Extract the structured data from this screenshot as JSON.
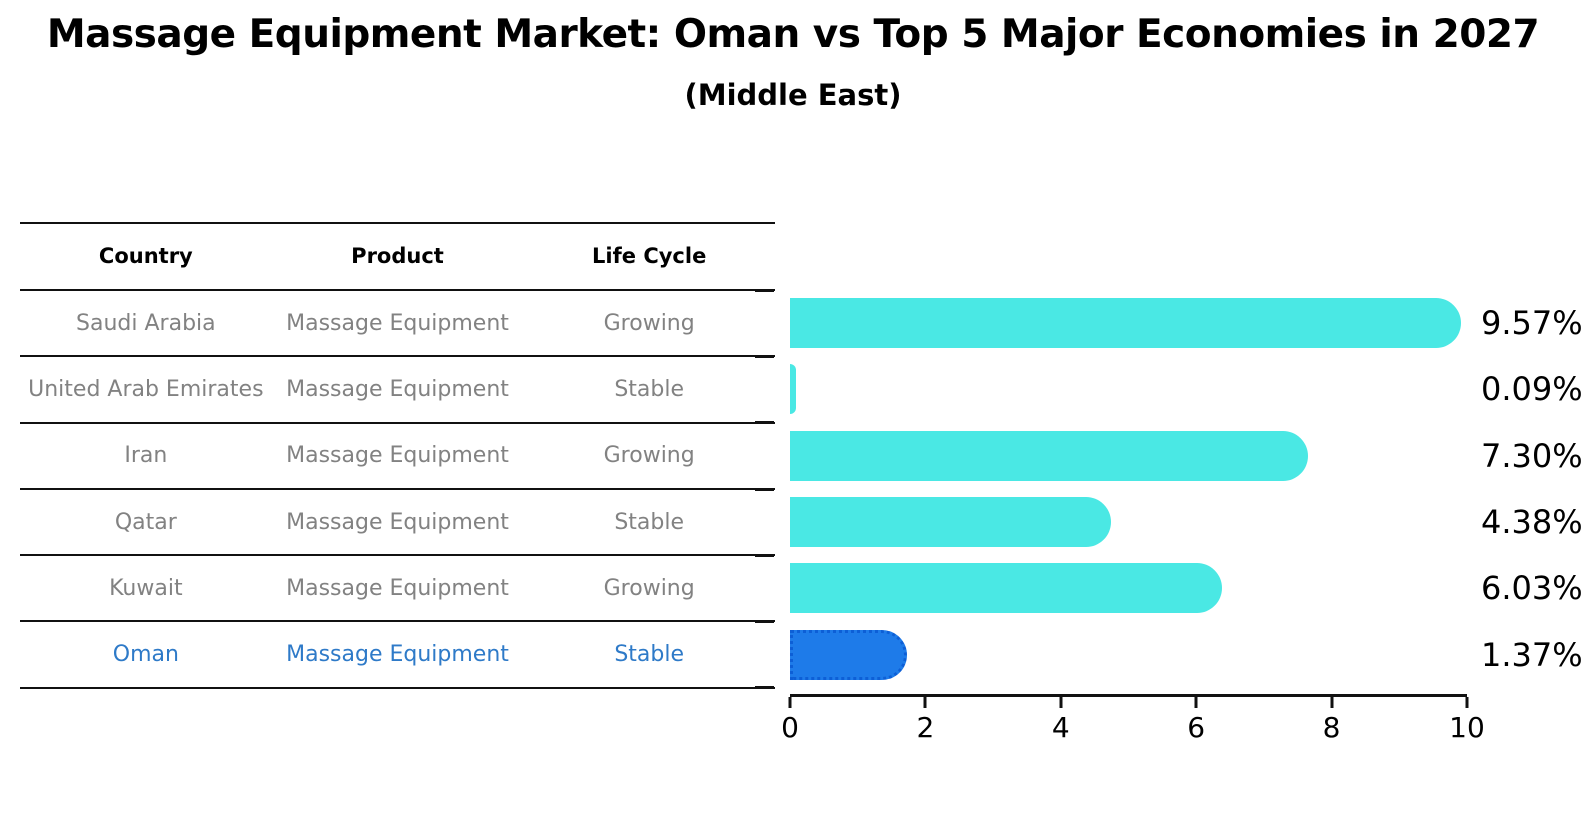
{
  "title": "Massage Equipment Market: Oman vs Top 5 Major Economies in 2027",
  "subtitle": "(Middle East)",
  "table": {
    "headers": [
      "Country",
      "Product",
      "Life Cycle"
    ],
    "rows": [
      {
        "country": "Saudi Arabia",
        "product": "Massage Equipment",
        "life_cycle": "Growing",
        "highlight": false
      },
      {
        "country": "United Arab Emirates",
        "product": "Massage Equipment",
        "life_cycle": "Stable",
        "highlight": false
      },
      {
        "country": "Iran",
        "product": "Massage Equipment",
        "life_cycle": "Growing",
        "highlight": false
      },
      {
        "country": "Qatar",
        "product": "Massage Equipment",
        "life_cycle": "Stable",
        "highlight": false
      },
      {
        "country": "Kuwait",
        "product": "Massage Equipment",
        "life_cycle": "Growing",
        "highlight": false
      },
      {
        "country": "Oman",
        "product": "Massage Equipment",
        "life_cycle": "Stable",
        "highlight": true
      }
    ]
  },
  "chart_data": {
    "type": "bar",
    "orientation": "horizontal",
    "title": "Massage Equipment Market: Oman vs Top 5 Major Economies in 2027 (Middle East)",
    "categories": [
      "Saudi Arabia",
      "United Arab Emirates",
      "Iran",
      "Qatar",
      "Kuwait",
      "Oman"
    ],
    "values": [
      9.57,
      0.09,
      7.3,
      4.38,
      6.03,
      1.37
    ],
    "labels": [
      "9.57%",
      "0.09%",
      "7.30%",
      "4.38%",
      "6.03%",
      "1.37%"
    ],
    "xlim": [
      0,
      10
    ],
    "xticks": [
      0,
      2,
      4,
      6,
      8,
      10
    ],
    "grid": false,
    "legend": false,
    "bar_color": "#4ae8e4",
    "highlight_color": "#1e7be9",
    "highlight_index": 5
  },
  "colors": {
    "muted_text": "#828282",
    "highlight_text": "#2e7ac8",
    "axis": "#111111"
  }
}
